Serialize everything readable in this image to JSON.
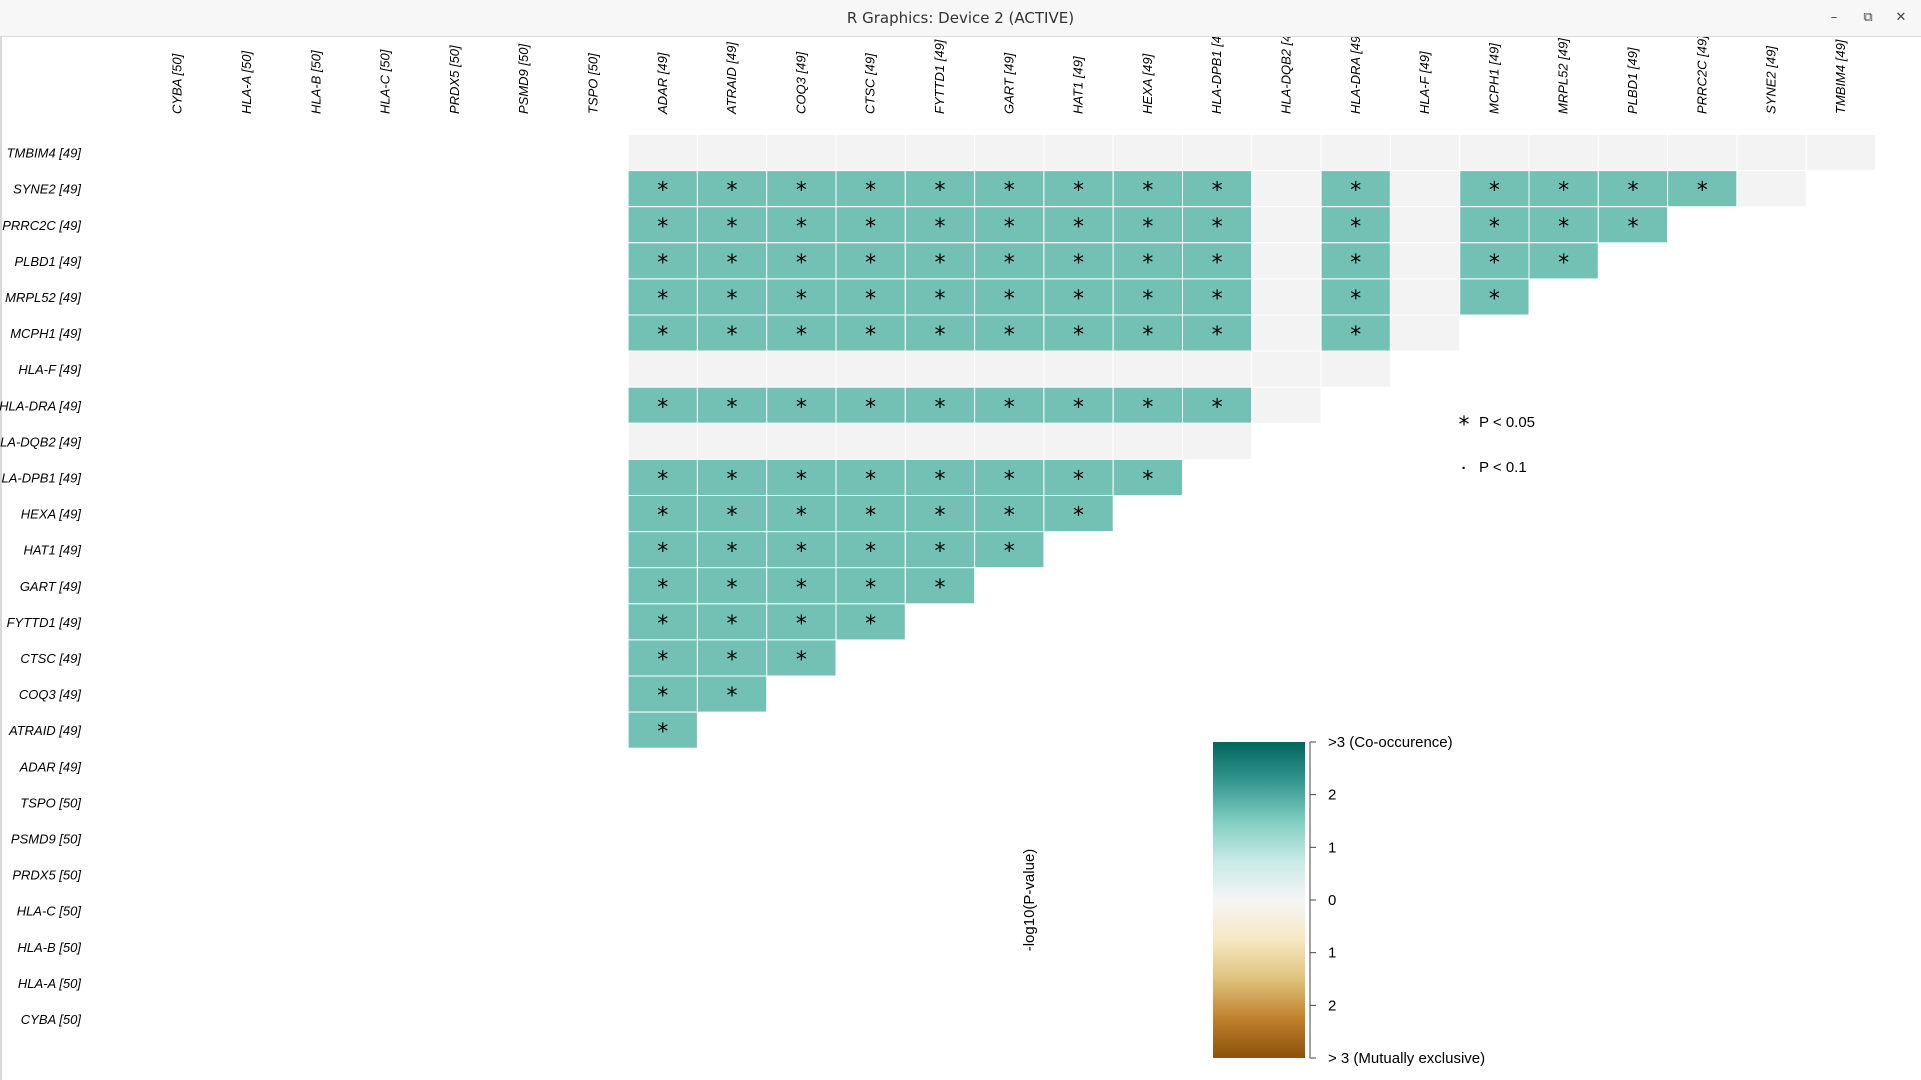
{
  "window": {
    "title": "R Graphics: Device 2 (ACTIVE)",
    "minimize_icon": "minimize-icon",
    "maximize_icon": "restore-icon",
    "close_icon": "close-icon",
    "minimize_glyph": "–",
    "maximize_glyph": "⧉",
    "close_glyph": "✕"
  },
  "chart_data": {
    "type": "heatmap",
    "title": "",
    "columns": [
      "CYBA [50]",
      "HLA-A [50]",
      "HLA-B [50]",
      "HLA-C [50]",
      "PRDX5 [50]",
      "PSMD9 [50]",
      "TSPO [50]",
      "ADAR [49]",
      "ATRAID [49]",
      "COQ3 [49]",
      "CTSC [49]",
      "FYTTD1 [49]",
      "GART [49]",
      "HAT1 [49]",
      "HEXA [49]",
      "HLA-DPB1 [4",
      "HLA-DQB2 [4",
      "HLA-DRA [49]",
      "HLA-F [49]",
      "MCPH1 [49]",
      "MRPL52 [49]",
      "PLBD1 [49]",
      "PRRC2C [49]",
      "SYNE2 [49]",
      "TMBIM4 [49]"
    ],
    "rows": [
      "TMBIM4 [49]",
      "SYNE2 [49]",
      "PRRC2C [49]",
      "PLBD1 [49]",
      "MRPL52 [49]",
      "MCPH1 [49]",
      "HLA-F [49]",
      "HLA-DRA [49]",
      "LA-DQB2 [49]",
      "LA-DPB1 [49]",
      "HEXA [49]",
      "HAT1 [49]",
      "GART [49]",
      "FYTTD1 [49]",
      "CTSC [49]",
      "COQ3 [49]",
      "ATRAID [49]",
      "ADAR [49]",
      "TSPO [50]",
      "PSMD9 [50]",
      "PRDX5 [50]",
      "HLA-C [50]",
      "HLA-B [50]",
      "HLA-A [50]",
      "CYBA [50]"
    ],
    "cells": [
      {
        "row": "TMBIM4 [49]",
        "start_col": 7,
        "values": [
          0,
          0,
          0,
          0,
          0,
          0,
          0,
          0,
          0,
          0,
          0,
          0,
          0,
          0,
          0,
          0,
          0,
          0
        ]
      },
      {
        "row": "SYNE2 [49]",
        "start_col": 7,
        "values": [
          2.2,
          2.2,
          2.2,
          2.2,
          2.2,
          2.2,
          2.2,
          2.2,
          2.2,
          0,
          2.2,
          0,
          2.2,
          2.2,
          2.2,
          2.2,
          0
        ]
      },
      {
        "row": "PRRC2C [49]",
        "start_col": 7,
        "values": [
          2.2,
          2.2,
          2.2,
          2.2,
          2.2,
          2.2,
          2.2,
          2.2,
          2.2,
          0,
          2.2,
          0,
          2.2,
          2.2,
          2.2
        ]
      },
      {
        "row": "PLBD1 [49]",
        "start_col": 7,
        "values": [
          2.2,
          2.2,
          2.2,
          2.2,
          2.2,
          2.2,
          2.2,
          2.2,
          2.2,
          0,
          2.2,
          0,
          2.2,
          2.2
        ]
      },
      {
        "row": "MRPL52 [49]",
        "start_col": 7,
        "values": [
          2.2,
          2.2,
          2.2,
          2.2,
          2.2,
          2.2,
          2.2,
          2.2,
          2.2,
          0,
          2.2,
          0,
          2.2
        ]
      },
      {
        "row": "MCPH1 [49]",
        "start_col": 7,
        "values": [
          2.2,
          2.2,
          2.2,
          2.2,
          2.2,
          2.2,
          2.2,
          2.2,
          2.2,
          0,
          2.2,
          0
        ]
      },
      {
        "row": "HLA-F [49]",
        "start_col": 7,
        "values": [
          0,
          0,
          0,
          0,
          0,
          0,
          0,
          0,
          0,
          0,
          0
        ]
      },
      {
        "row": "HLA-DRA [49]",
        "start_col": 7,
        "values": [
          2.2,
          2.2,
          2.2,
          2.2,
          2.2,
          2.2,
          2.2,
          2.2,
          2.2,
          0
        ]
      },
      {
        "row": "LA-DQB2 [49]",
        "start_col": 7,
        "values": [
          0,
          0,
          0,
          0,
          0,
          0,
          0,
          0,
          0
        ]
      },
      {
        "row": "LA-DPB1 [49]",
        "start_col": 7,
        "values": [
          2.2,
          2.2,
          2.2,
          2.2,
          2.2,
          2.2,
          2.2,
          2.2
        ]
      },
      {
        "row": "HEXA [49]",
        "start_col": 7,
        "values": [
          2.2,
          2.2,
          2.2,
          2.2,
          2.2,
          2.2,
          2.2
        ]
      },
      {
        "row": "HAT1 [49]",
        "start_col": 7,
        "values": [
          2.2,
          2.2,
          2.2,
          2.2,
          2.2,
          2.2
        ]
      },
      {
        "row": "GART [49]",
        "start_col": 7,
        "values": [
          2.2,
          2.2,
          2.2,
          2.2,
          2.2
        ]
      },
      {
        "row": "FYTTD1 [49]",
        "start_col": 7,
        "values": [
          2.2,
          2.2,
          2.2,
          2.2
        ]
      },
      {
        "row": "CTSC [49]",
        "start_col": 7,
        "values": [
          2.2,
          2.2,
          2.2
        ]
      },
      {
        "row": "COQ3 [49]",
        "start_col": 7,
        "values": [
          2.2,
          2.2
        ]
      },
      {
        "row": "ATRAID [49]",
        "start_col": 7,
        "values": [
          2.2
        ]
      }
    ],
    "significance": {
      "significant_when_value_at_least": 1.3
    },
    "legend": {
      "significance": [
        {
          "symbol": "*",
          "label": "P < 0.05"
        },
        {
          "symbol": "·",
          "label": "P < 0.1"
        }
      ],
      "colorbar": {
        "title": "-log10(P-value)",
        "range": [
          -3,
          3
        ],
        "tick_labels": [
          ">3 (Co-occurence)",
          "2",
          "1",
          "0",
          "1",
          "2",
          "> 3 (Mutually exclusive)"
        ],
        "colors": [
          "#01665e",
          "#35978f",
          "#80cdc1",
          "#c7eae5",
          "#f5f5f5",
          "#f6e8c3",
          "#dfc27d",
          "#bf812d",
          "#8c510a"
        ]
      }
    },
    "grid": false,
    "colors": {
      "co_occurrence": "#72c1b4",
      "not_significant": "#f3f3f3"
    }
  }
}
